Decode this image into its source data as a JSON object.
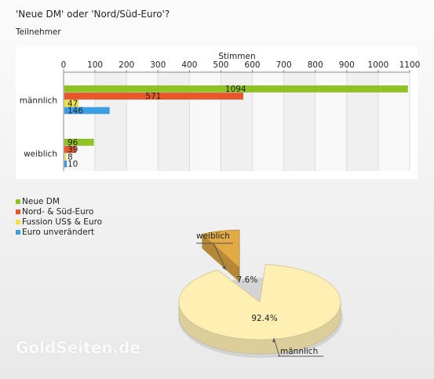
{
  "page": {
    "title": "'Neue DM' oder 'Nord/Süd-Euro'?",
    "subtitle": "Teilnehmer",
    "brand": "GoldSeiten.de"
  },
  "chart_data": [
    {
      "type": "bar",
      "orientation": "horizontal",
      "title": "",
      "xlabel": "Stimmen",
      "ylabel": "",
      "xlim": [
        0,
        1100
      ],
      "ticks": [
        0,
        100,
        200,
        300,
        400,
        500,
        600,
        700,
        800,
        900,
        1000,
        1100
      ],
      "grid": true,
      "categories": [
        "männlich",
        "weiblich"
      ],
      "series": [
        {
          "name": "Neue DM",
          "color": "#8fc31f",
          "values": [
            1094,
            96
          ]
        },
        {
          "name": "Nord- & Süd-Euro",
          "color": "#e8562a",
          "values": [
            571,
            39
          ]
        },
        {
          "name": "Fussion US$ & Euro",
          "color": "#f2e34a",
          "values": [
            47,
            8
          ]
        },
        {
          "name": "Euro unverändert",
          "color": "#3a9ee4",
          "values": [
            146,
            10
          ]
        }
      ],
      "legend": "bottom-left"
    },
    {
      "type": "pie",
      "title": "",
      "slices": [
        {
          "label": "männlich",
          "value": 92.4,
          "value_label": "92.4%",
          "color": "#ffefb3"
        },
        {
          "label": "weiblich",
          "value": 7.6,
          "value_label": "7.6%",
          "color": "#e1aa44"
        }
      ]
    }
  ]
}
